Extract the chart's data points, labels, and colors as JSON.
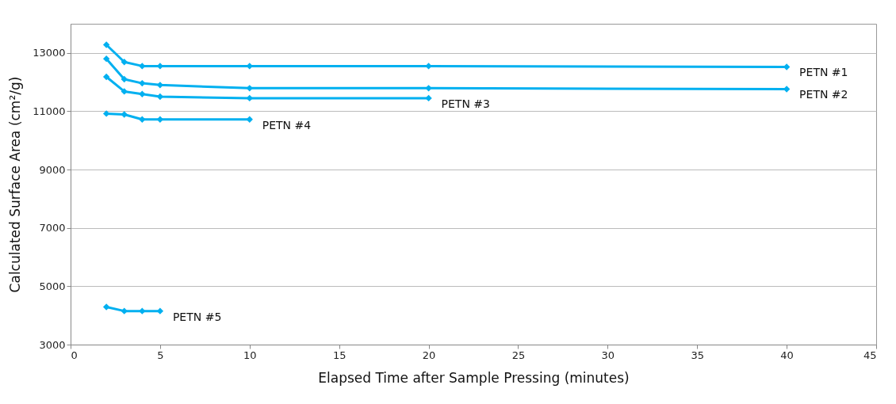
{
  "chart_data": {
    "type": "line",
    "xlabel": "Elapsed Time after Sample Pressing (minutes)",
    "ylabel": "Calculated Surface Area (cm²/g)",
    "xlim": [
      0,
      45
    ],
    "xticks": [
      0,
      5,
      10,
      15,
      20,
      25,
      30,
      35,
      40,
      45
    ],
    "ylim": [
      3000,
      14000
    ],
    "yticks": [
      3000,
      5000,
      7000,
      9000,
      11000,
      13000
    ],
    "grid": "y",
    "marker": "diamond",
    "legend": false,
    "series": [
      {
        "name": "PETN #1",
        "color": "#00b0f0",
        "x": [
          2,
          3,
          4,
          5,
          10,
          20,
          40
        ],
        "values": [
          13280,
          12690,
          12550,
          12550,
          12550,
          12550,
          12520
        ]
      },
      {
        "name": "PETN #2",
        "color": "#00b0f0",
        "x": [
          2,
          3,
          4,
          5,
          10,
          20,
          40
        ],
        "values": [
          12800,
          12100,
          11960,
          11900,
          11790,
          11790,
          11760
        ]
      },
      {
        "name": "PETN #3",
        "color": "#00b0f0",
        "x": [
          2,
          3,
          4,
          5,
          10,
          20
        ],
        "values": [
          12180,
          11680,
          11590,
          11500,
          11450,
          11450
        ]
      },
      {
        "name": "PETN #4",
        "color": "#00b0f0",
        "x": [
          2,
          3,
          4,
          5,
          10
        ],
        "values": [
          10920,
          10890,
          10720,
          10720,
          10720
        ]
      },
      {
        "name": "PETN #5",
        "color": "#00b0f0",
        "x": [
          2,
          3,
          4,
          5
        ],
        "values": [
          4290,
          4150,
          4150,
          4150
        ]
      }
    ]
  }
}
